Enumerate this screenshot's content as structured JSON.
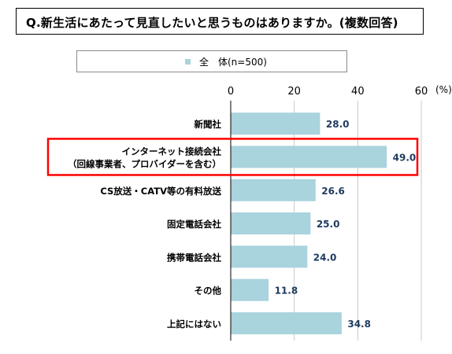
{
  "question": "Q.新生活にあたって見直したいと思うものはありますか。(複数回答)",
  "legend": {
    "label": "全　体(n=500)"
  },
  "colors": {
    "bar": "#a9d3dd",
    "highlight": "#ff0000",
    "value_text": "#1f3a5f"
  },
  "chart_data": {
    "type": "bar",
    "orientation": "horizontal",
    "categories": [
      [
        "新聞社"
      ],
      [
        "インターネット接続会社",
        "（回線事業者、プロバイダーを含む）"
      ],
      [
        "CS放送・CATV等の有料放送"
      ],
      [
        "固定電話会社"
      ],
      [
        "携帯電話会社"
      ],
      [
        "その他"
      ],
      [
        "上記にはない"
      ]
    ],
    "series": [
      {
        "name": "全　体(n=500)",
        "values": [
          28.0,
          49.0,
          26.6,
          25.0,
          24.0,
          11.8,
          34.8
        ]
      }
    ],
    "value_labels": [
      "28.0",
      "49.0",
      "26.6",
      "25.0",
      "24.0",
      "11.8",
      "34.8"
    ],
    "xlim": [
      0,
      60
    ],
    "ticks": [
      "0",
      "20",
      "40",
      "60"
    ],
    "unit": "(%)",
    "highlighted_index": 1,
    "grid": true,
    "legend_position": "top"
  }
}
